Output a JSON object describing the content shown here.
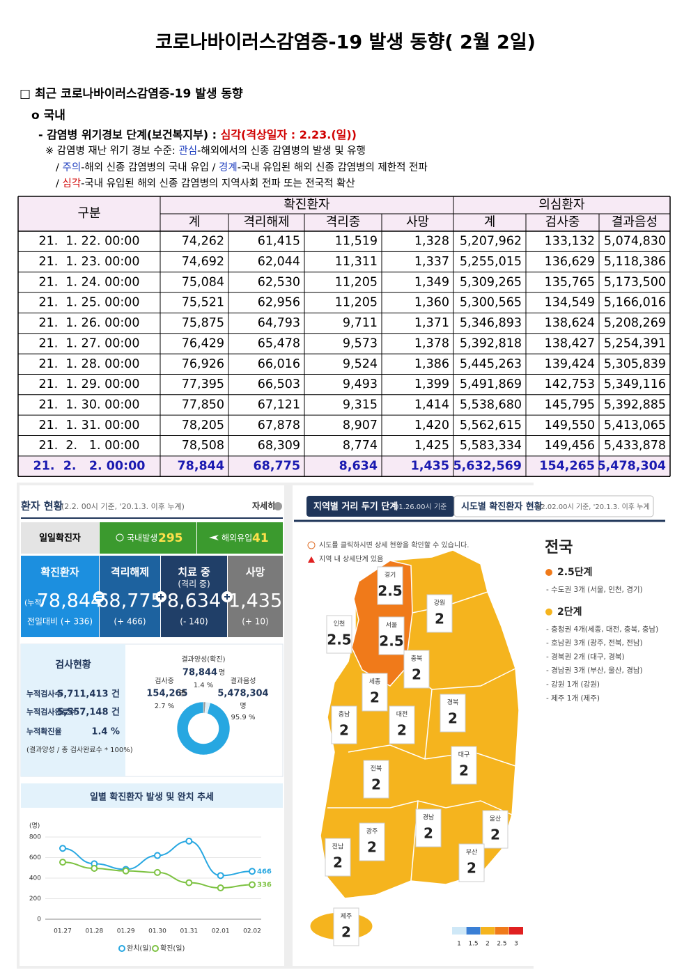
{
  "header": {
    "title": "코로나바이러스감염증-19 발생 동향( 2월 2일)"
  },
  "section": {
    "heading": "□ 최근 코로나바이러스감염증-19 발생 동향",
    "sub": "ο 국내",
    "alert": [
      {
        "text": "- 감염병 위기경보 단계(보건복지부) : ",
        "color": "#000000"
      },
      {
        "text": "심각(격상일자 : 2.23.(일))",
        "color": "#d00000"
      }
    ],
    "notes": [
      [
        {
          "text": "※ 감염병 재난 위기 경보 수준: ",
          "color": "#000000"
        },
        {
          "text": "관심",
          "color": "#1f3fbf"
        },
        {
          "text": "-해외에서의 신종 감염병의 발생 및 유행",
          "color": "#000000"
        }
      ],
      [
        {
          "text": "/ ",
          "color": "#000000"
        },
        {
          "text": "주의",
          "color": "#1f3fbf"
        },
        {
          "text": "-해외 신종 감염병의 국내 유입 / ",
          "color": "#000000"
        },
        {
          "text": "경계",
          "color": "#1f3fbf"
        },
        {
          "text": "-국내 유입된 해외 신종 감염병의 제한적 전파",
          "color": "#000000"
        }
      ],
      [
        {
          "text": "/ ",
          "color": "#000000"
        },
        {
          "text": "심각",
          "color": "#d00000"
        },
        {
          "text": "-국내 유입된 해외 신종 감염병의 지역사회 전파 또는 전국적 확산",
          "color": "#000000"
        }
      ]
    ]
  },
  "table": {
    "header": [
      "구분",
      "확진환자",
      "의심환자"
    ],
    "subheader": [
      "계",
      "격리해제",
      "격리중",
      "사망",
      "계",
      "검사중",
      "결과음성"
    ],
    "rows": [
      [
        "21.  1. 22. 00:00",
        "74,262",
        "61,415",
        "11,519",
        "1,328",
        "5,207,962",
        "133,132",
        "5,074,830"
      ],
      [
        "21.  1. 23. 00:00",
        "74,692",
        "62,044",
        "11,311",
        "1,337",
        "5,255,015",
        "136,629",
        "5,118,386"
      ],
      [
        "21.  1. 24. 00:00",
        "75,084",
        "62,530",
        "11,205",
        "1,349",
        "5,309,265",
        "135,765",
        "5,173,500"
      ],
      [
        "21.  1. 25. 00:00",
        "75,521",
        "62,956",
        "11,205",
        "1,360",
        "5,300,565",
        "134,549",
        "5,166,016"
      ],
      [
        "21.  1. 26. 00:00",
        "75,875",
        "64,793",
        "9,711",
        "1,371",
        "5,346,893",
        "138,624",
        "5,208,269"
      ],
      [
        "21.  1. 27. 00:00",
        "76,429",
        "65,478",
        "9,573",
        "1,378",
        "5,392,818",
        "138,427",
        "5,254,391"
      ],
      [
        "21.  1. 28. 00:00",
        "76,926",
        "66,016",
        "9,524",
        "1,386",
        "5,445,263",
        "139,424",
        "5,305,839"
      ],
      [
        "21.  1. 29. 00:00",
        "77,395",
        "66,503",
        "9,493",
        "1,399",
        "5,491,869",
        "142,753",
        "5,349,116"
      ],
      [
        "21.  1. 30. 00:00",
        "77,850",
        "67,121",
        "9,315",
        "1,414",
        "5,538,680",
        "145,795",
        "5,392,885"
      ],
      [
        "21.  1. 31. 00:00",
        "78,205",
        "67,878",
        "8,907",
        "1,420",
        "5,562,615",
        "149,550",
        "5,413,065"
      ],
      [
        "21.  2.   1. 00:00",
        "78,508",
        "68,309",
        "8,774",
        "1,425",
        "5,583,334",
        "149,456",
        "5,433,878"
      ],
      [
        "21.  2.   2. 00:00",
        "78,844",
        "68,775",
        "8,634",
        "1,435",
        "5,632,569",
        "154,265",
        "5,478,304"
      ]
    ]
  },
  "dashboard": {
    "title": "환자 현황",
    "subtitle": "(2.2. 00시 기준, '20.1.3. 이후 누계)",
    "more": "자세히",
    "daily": {
      "label": "일일확진자",
      "domestic_label": "국내발생",
      "domestic": "295",
      "overseas_label": "해외유입",
      "overseas": "41"
    },
    "boxes": [
      {
        "title": "확진환자",
        "prefix": "(누적)",
        "value": "78,844",
        "change": "전일대비 (+ 336)",
        "color": "#1c8fdf"
      },
      {
        "title": "격리해제",
        "value": "68,775",
        "change": "(+ 466)",
        "color": "#1d629f"
      },
      {
        "title": "치료 중",
        "note": "(격리 중)",
        "value": "8,634",
        "change": "(- 140)",
        "color": "#203f68"
      },
      {
        "title": "사망",
        "value": "1,435",
        "change": "(+ 10)",
        "color": "#7a7a7a"
      }
    ],
    "tests": {
      "title": "검사현황",
      "rows": [
        [
          "누적검사수",
          "5,711,413 건"
        ],
        [
          "누적검사완료수",
          "5,557,148 건"
        ],
        [
          "누적확진율",
          "1.4 %"
        ]
      ],
      "footnote": "(결과양성 / 총 검사완료수 * 100%)",
      "donut": [
        {
          "name": "결과양성(확진)",
          "count": "78,844",
          "unit": "명",
          "pct": 1.4,
          "pct_label": "1.4 %",
          "color": "#9a9a9a"
        },
        {
          "name": "검사중",
          "count": "154,265",
          "unit": "명",
          "pct": 2.7,
          "pct_label": "2.7 %",
          "color": "#d9eef9"
        },
        {
          "name": "결과음성",
          "count": "5,478,304",
          "unit": "명",
          "pct": 95.9,
          "pct_label": "95.9 %",
          "color": "#27a7e1"
        }
      ]
    },
    "trend": {
      "title": "일별 확진환자 발생 및 완치 추세",
      "unit": "(명)",
      "categories": [
        "01.27",
        "01.28",
        "01.29",
        "01.30",
        "01.31",
        "02.01",
        "02.02"
      ],
      "ylim": [
        0,
        800
      ],
      "yticks": [
        0,
        200,
        400,
        600,
        800
      ],
      "series": [
        {
          "name": "완치(일)",
          "color": "#27a7e1",
          "values": [
            690,
            540,
            485,
            620,
            760,
            425,
            466
          ]
        },
        {
          "name": "확진(일)",
          "color": "#7dc242",
          "values": [
            555,
            495,
            470,
            455,
            355,
            305,
            336
          ]
        }
      ]
    }
  },
  "map": {
    "tab1": "지역별 거리 두기 단계",
    "tab1_note": "01.26.00시 기준",
    "tab2": "시도별 확진환자 현황",
    "tab2_note": "02.02.00시 기준, '20.1.3. 이후 누계",
    "notes": [
      "시도를 클릭하시면 상세 현황을 확인할 수 있습니다.",
      "지역 내 상세단계 있음"
    ],
    "regions": [
      {
        "name": "경기",
        "level": 2.5
      },
      {
        "name": "서울",
        "level": 2.5
      },
      {
        "name": "인천",
        "level": 2.5
      },
      {
        "name": "강원",
        "level": 2
      },
      {
        "name": "충북",
        "level": 2
      },
      {
        "name": "세종",
        "level": 2
      },
      {
        "name": "충남",
        "level": 2
      },
      {
        "name": "대전",
        "level": 2
      },
      {
        "name": "경북",
        "level": 2
      },
      {
        "name": "대구",
        "level": 2
      },
      {
        "name": "전북",
        "level": 2
      },
      {
        "name": "광주",
        "level": 2
      },
      {
        "name": "경남",
        "level": 2
      },
      {
        "name": "울산",
        "level": 2
      },
      {
        "name": "전남",
        "level": 2
      },
      {
        "name": "부산",
        "level": 2
      },
      {
        "name": "제주",
        "level": 2
      }
    ],
    "summary": {
      "title": "전국",
      "groups": [
        {
          "label": "2.5단계",
          "color": "#f07a1a",
          "items": [
            "- 수도권 3개 (서울, 인천, 경기)"
          ]
        },
        {
          "label": "2단계",
          "color": "#f5b41e",
          "items": [
            "- 충청권 4개(세종, 대전, 충북, 충남)",
            "- 호남권 3개 (광주, 전북, 전남)",
            "- 경북권 2개 (대구, 경북)",
            "- 경남권 3개 (부산, 울산, 경남)",
            "- 강원 1개 (강원)",
            "- 제주 1개 (제주)"
          ]
        }
      ]
    },
    "scale": [
      {
        "value": 1,
        "color": "#cfe8f7"
      },
      {
        "value": 1.5,
        "color": "#3a7fd5"
      },
      {
        "value": 2,
        "color": "#f5b41e"
      },
      {
        "value": 2.5,
        "color": "#f07a1a"
      },
      {
        "value": 3,
        "color": "#e02020"
      }
    ]
  }
}
